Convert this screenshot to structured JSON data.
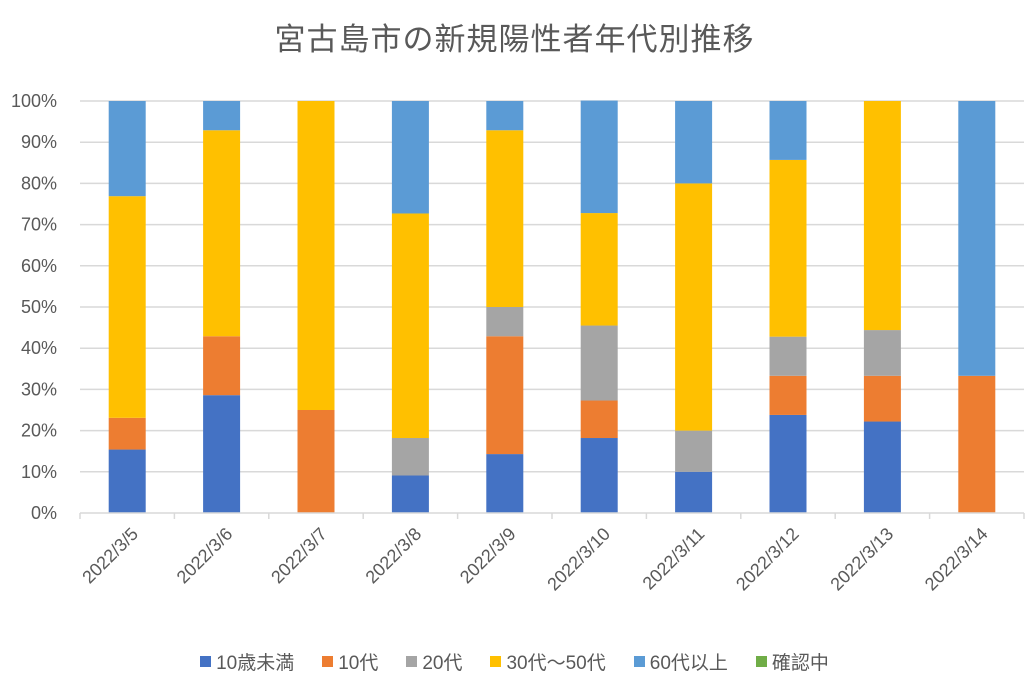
{
  "chart_data": {
    "type": "bar",
    "stacked": "percent",
    "title": "宮古島市の新規陽性者年代別推移",
    "xlabel": "",
    "ylabel": "",
    "ylim": [
      0,
      100
    ],
    "yticks": [
      "0%",
      "10%",
      "20%",
      "30%",
      "40%",
      "50%",
      "60%",
      "70%",
      "80%",
      "90%",
      "100%"
    ],
    "grid": true,
    "legend_position": "bottom",
    "categories": [
      "2022/3/5",
      "2022/3/6",
      "2022/3/7",
      "2022/3/8",
      "2022/3/9",
      "2022/3/10",
      "2022/3/11",
      "2022/3/12",
      "2022/3/13",
      "2022/3/14"
    ],
    "series": [
      {
        "name": "10歳未満",
        "color": "#4472C4",
        "values": [
          15.4,
          28.6,
          0,
          9.1,
          14.3,
          18.2,
          10.0,
          23.8,
          22.2,
          0
        ]
      },
      {
        "name": "10代",
        "color": "#ED7D31",
        "values": [
          7.7,
          14.3,
          25.0,
          0,
          28.6,
          9.1,
          0,
          9.5,
          11.1,
          33.3
        ]
      },
      {
        "name": "20代",
        "color": "#A5A5A5",
        "values": [
          0,
          0,
          0,
          9.1,
          7.1,
          18.2,
          10.0,
          9.5,
          11.1,
          0
        ]
      },
      {
        "name": "30代～50代",
        "color": "#FFC000",
        "values": [
          53.8,
          50.0,
          75.0,
          54.5,
          42.9,
          27.3,
          60.0,
          42.9,
          55.6,
          0
        ]
      },
      {
        "name": "60代以上",
        "color": "#5B9BD5",
        "values": [
          23.1,
          7.1,
          0,
          27.3,
          7.1,
          27.3,
          20.0,
          14.3,
          0,
          66.7
        ]
      },
      {
        "name": "確認中",
        "color": "#70AD47",
        "values": [
          0,
          0,
          0,
          0,
          0,
          0,
          0,
          0,
          0,
          0
        ]
      }
    ]
  }
}
